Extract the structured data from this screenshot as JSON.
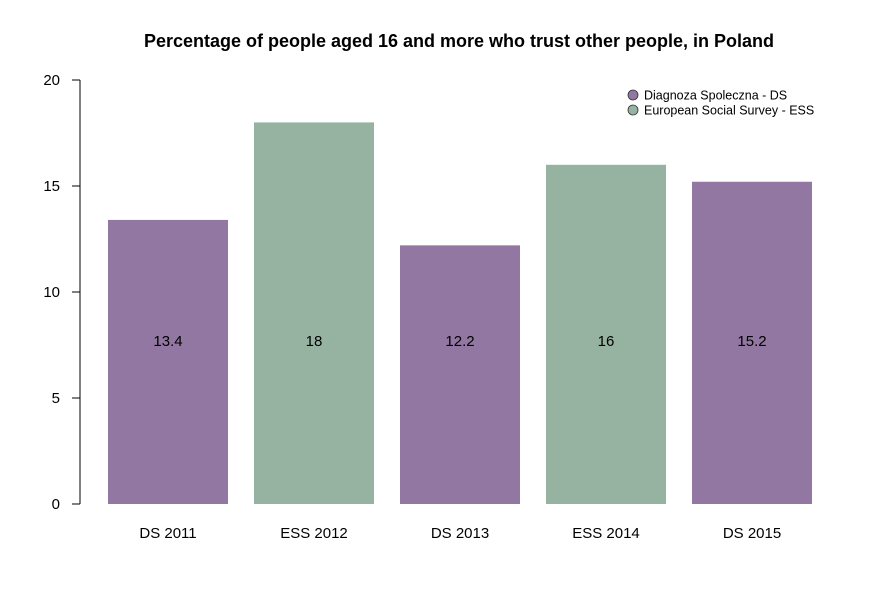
{
  "chart_data": {
    "type": "bar",
    "title": "Percentage of people aged 16 and more who trust other people, in Poland",
    "xlabel": "",
    "ylabel": "",
    "ylim": [
      0,
      20
    ],
    "yticks": [
      "0",
      "5",
      "10",
      "15",
      "20"
    ],
    "categories": [
      "DS 2011",
      "ESS 2012",
      "DS 2013",
      "ESS 2014",
      "DS 2015"
    ],
    "values": [
      13.4,
      18,
      12.2,
      16,
      15.2
    ],
    "value_labels": [
      "13.4",
      "18",
      "12.2",
      "16",
      "15.2"
    ],
    "bar_series": [
      0,
      1,
      0,
      1,
      0
    ],
    "grid": false,
    "legend_position": "top-right",
    "legend": [
      {
        "label": "Diagnoza Spoleczna - DS",
        "color": "#9177a1"
      },
      {
        "label": "European Social Survey - ESS",
        "color": "#96b3a2"
      }
    ],
    "colors": [
      "#9177a1",
      "#96b3a2"
    ]
  }
}
